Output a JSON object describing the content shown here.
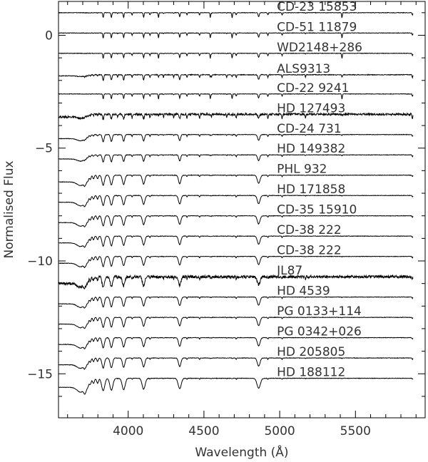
{
  "chart_data": {
    "type": "line",
    "title": "",
    "xlabel": "Wavelength (Å)",
    "ylabel": "Normalised Flux",
    "xlim": [
      3540,
      5960
    ],
    "ylim": [
      -16.95,
      1.5
    ],
    "xticks": [
      4000,
      4500,
      5000,
      5500
    ],
    "yticks": [
      0,
      -5,
      -10,
      -15
    ],
    "x_tick_labels": [
      "4000",
      "4500",
      "5000",
      "5500"
    ],
    "y_tick_labels": [
      "0",
      "−5",
      "−10",
      "−15"
    ],
    "wavelength_range_plotted": [
      3540,
      5880
    ],
    "grid": false,
    "legend": "none",
    "series": [
      {
        "name": "CD-23 15853",
        "continuum": 1.0,
        "profile": "narrow"
      },
      {
        "name": "CD-51 11879",
        "continuum": 0.1,
        "profile": "narrow"
      },
      {
        "name": "WD2148+286",
        "continuum": -0.8,
        "profile": "narrow"
      },
      {
        "name": "ALS9313",
        "continuum": -1.75,
        "profile": "narrow_many"
      },
      {
        "name": "CD-22 9241",
        "continuum": -2.6,
        "profile": "narrow"
      },
      {
        "name": "HD 127493",
        "continuum": -3.5,
        "profile": "noisy"
      },
      {
        "name": "CD-24 731",
        "continuum": -4.4,
        "profile": "medium"
      },
      {
        "name": "HD 149382",
        "continuum": -5.3,
        "profile": "medium"
      },
      {
        "name": "PHL 932",
        "continuum": -6.2,
        "profile": "broad"
      },
      {
        "name": "HD 171858",
        "continuum": -7.1,
        "profile": "broad"
      },
      {
        "name": "CD-35 15910",
        "continuum": -8.0,
        "profile": "broad"
      },
      {
        "name": "CD-38 222",
        "continuum": -8.9,
        "profile": "broad"
      },
      {
        "name": "CD-38 222",
        "continuum": -9.8,
        "profile": "broad"
      },
      {
        "name": "JL87",
        "continuum": -10.7,
        "profile": "noisy_broad"
      },
      {
        "name": "HD 4539",
        "continuum": -11.6,
        "profile": "broad"
      },
      {
        "name": "PG 0133+114",
        "continuum": -12.5,
        "profile": "broad"
      },
      {
        "name": "PG 0342+026",
        "continuum": -13.4,
        "profile": "broad"
      },
      {
        "name": "HD 205805",
        "continuum": -14.3,
        "profile": "broad"
      },
      {
        "name": "HD 188112",
        "continuum": -15.2,
        "profile": "very_broad"
      }
    ]
  }
}
